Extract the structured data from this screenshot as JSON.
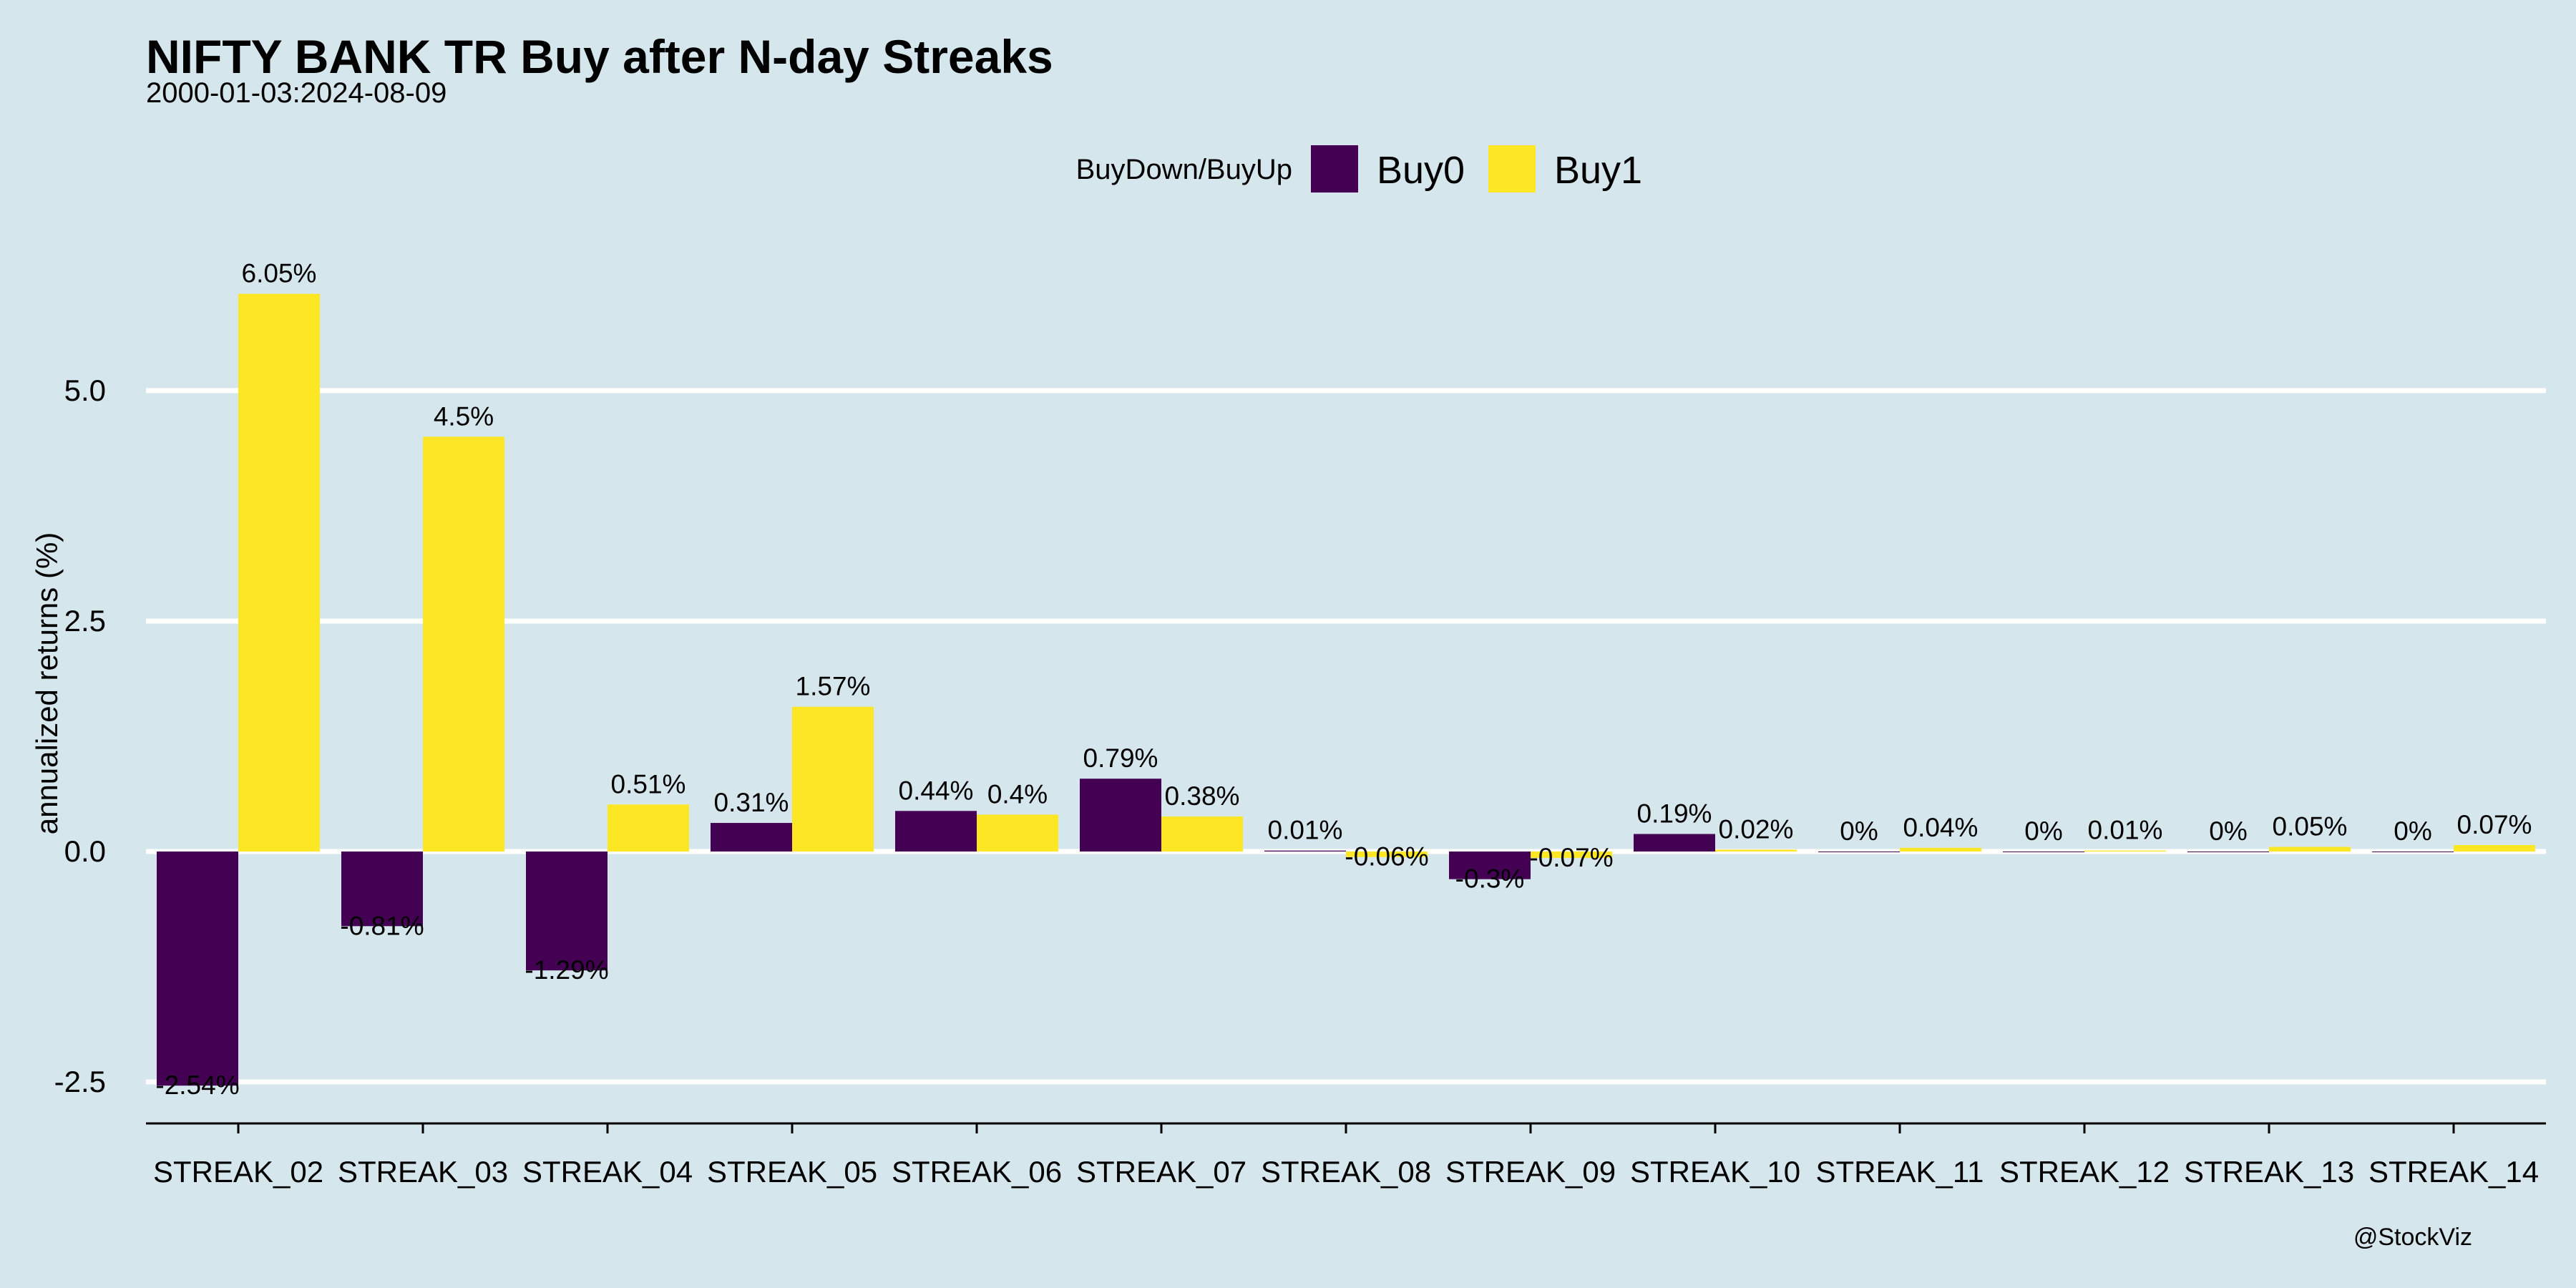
{
  "chart_data": {
    "type": "bar",
    "title": "NIFTY BANK TR Buy after N-day Streaks",
    "subtitle": "2000-01-03:2024-08-09",
    "xlabel": "",
    "ylabel": "annualized returns (%)",
    "ylim": [
      -2.95,
      6.35
    ],
    "yticks": [
      -2.5,
      0.0,
      2.5,
      5.0
    ],
    "ytick_labels": [
      "-2.5",
      "0.0",
      "2.5",
      "5.0"
    ],
    "grid": true,
    "legend": {
      "title": "BuyDown/BuyUp",
      "position": "top"
    },
    "categories": [
      "STREAK_02",
      "STREAK_03",
      "STREAK_04",
      "STREAK_05",
      "STREAK_06",
      "STREAK_07",
      "STREAK_08",
      "STREAK_09",
      "STREAK_10",
      "STREAK_11",
      "STREAK_12",
      "STREAK_13",
      "STREAK_14"
    ],
    "series": [
      {
        "name": "Buy0",
        "color": "#440154",
        "values": [
          -2.54,
          -0.81,
          -1.29,
          0.31,
          0.44,
          0.79,
          0.01,
          -0.3,
          0.19,
          0,
          0,
          0,
          0
        ],
        "labels": [
          "-2.54%",
          "-0.81%",
          "-1.29%",
          "0.31%",
          "0.44%",
          "0.79%",
          "0.01%",
          "-0.3%",
          "0.19%",
          "0%",
          "0%",
          "0%",
          "0%"
        ]
      },
      {
        "name": "Buy1",
        "color": "#fde725",
        "values": [
          6.05,
          4.5,
          0.51,
          1.57,
          0.4,
          0.38,
          -0.06,
          -0.07,
          0.02,
          0.04,
          0.01,
          0.05,
          0.07
        ],
        "labels": [
          "6.05%",
          "4.5%",
          "0.51%",
          "1.57%",
          "0.4%",
          "0.38%",
          "-0.06%",
          "-0.07%",
          "0.02%",
          "0.04%",
          "0.01%",
          "0.05%",
          "0.07%"
        ]
      }
    ],
    "caption": "@StockViz"
  }
}
